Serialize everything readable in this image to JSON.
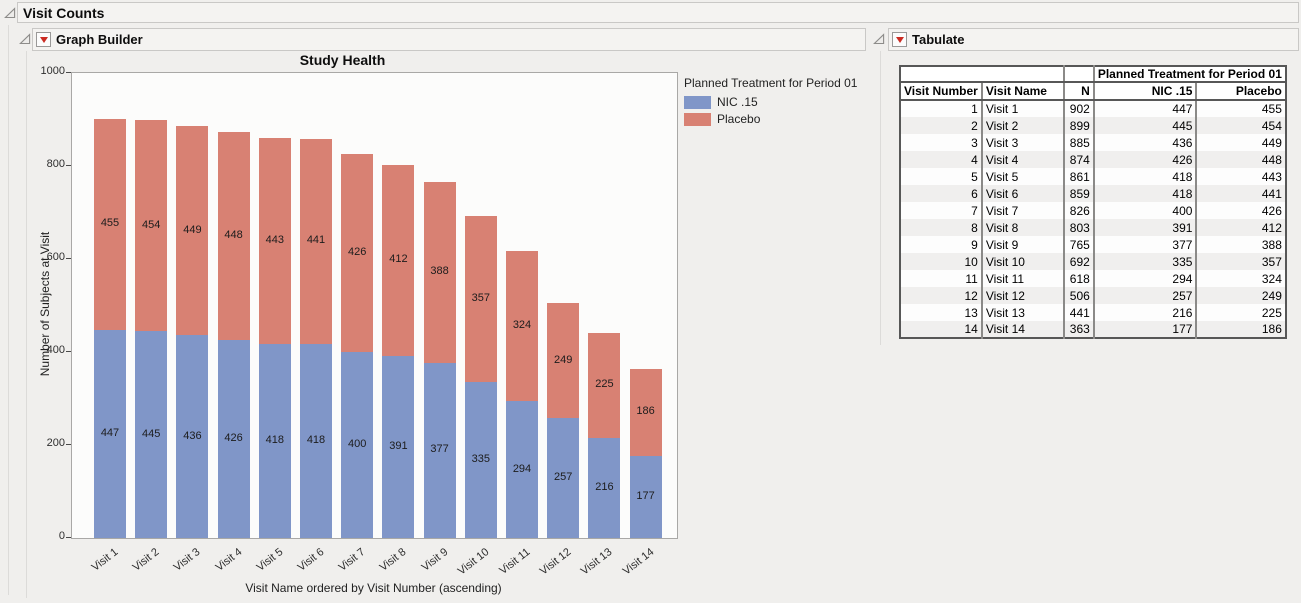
{
  "outline": {
    "visit_counts": "Visit Counts",
    "graph_builder": "Graph Builder",
    "tabulate": "Tabulate"
  },
  "chart_data": {
    "type": "bar",
    "stacked": true,
    "title": "Study Health",
    "xlabel": "Visit Name ordered by Visit Number (ascending)",
    "ylabel": "Number of Subjects at Visit",
    "ylim": [
      0,
      1000
    ],
    "yticks": [
      0,
      200,
      400,
      600,
      800,
      1000
    ],
    "grid": false,
    "bar_labels": true,
    "legend_position": "right",
    "legend_title": "Planned Treatment for Period 01",
    "categories": [
      "Visit 1",
      "Visit 2",
      "Visit 3",
      "Visit 4",
      "Visit 5",
      "Visit 6",
      "Visit 7",
      "Visit 8",
      "Visit 9",
      "Visit 10",
      "Visit 11",
      "Visit 12",
      "Visit 13",
      "Visit 14"
    ],
    "series": [
      {
        "name": "NIC .15",
        "color": "#8096C8",
        "values": [
          447,
          445,
          436,
          426,
          418,
          418,
          400,
          391,
          377,
          335,
          294,
          257,
          216,
          177
        ]
      },
      {
        "name": "Placebo",
        "color": "#D88173",
        "values": [
          455,
          454,
          449,
          448,
          443,
          441,
          426,
          412,
          388,
          357,
          324,
          249,
          225,
          186
        ]
      }
    ]
  },
  "table": {
    "span_header": "Planned Treatment for Period 01",
    "columns": [
      "Visit Number",
      "Visit Name",
      "N",
      "NIC .15",
      "Placebo"
    ],
    "rows": [
      [
        1,
        "Visit 1",
        902,
        447,
        455
      ],
      [
        2,
        "Visit 2",
        899,
        445,
        454
      ],
      [
        3,
        "Visit 3",
        885,
        436,
        449
      ],
      [
        4,
        "Visit 4",
        874,
        426,
        448
      ],
      [
        5,
        "Visit 5",
        861,
        418,
        443
      ],
      [
        6,
        "Visit 6",
        859,
        418,
        441
      ],
      [
        7,
        "Visit 7",
        826,
        400,
        426
      ],
      [
        8,
        "Visit 8",
        803,
        391,
        412
      ],
      [
        9,
        "Visit 9",
        765,
        377,
        388
      ],
      [
        10,
        "Visit 10",
        692,
        335,
        357
      ],
      [
        11,
        "Visit 11",
        618,
        294,
        324
      ],
      [
        12,
        "Visit 12",
        506,
        257,
        249
      ],
      [
        13,
        "Visit 13",
        441,
        216,
        225
      ],
      [
        14,
        "Visit 14",
        363,
        177,
        186
      ]
    ]
  }
}
